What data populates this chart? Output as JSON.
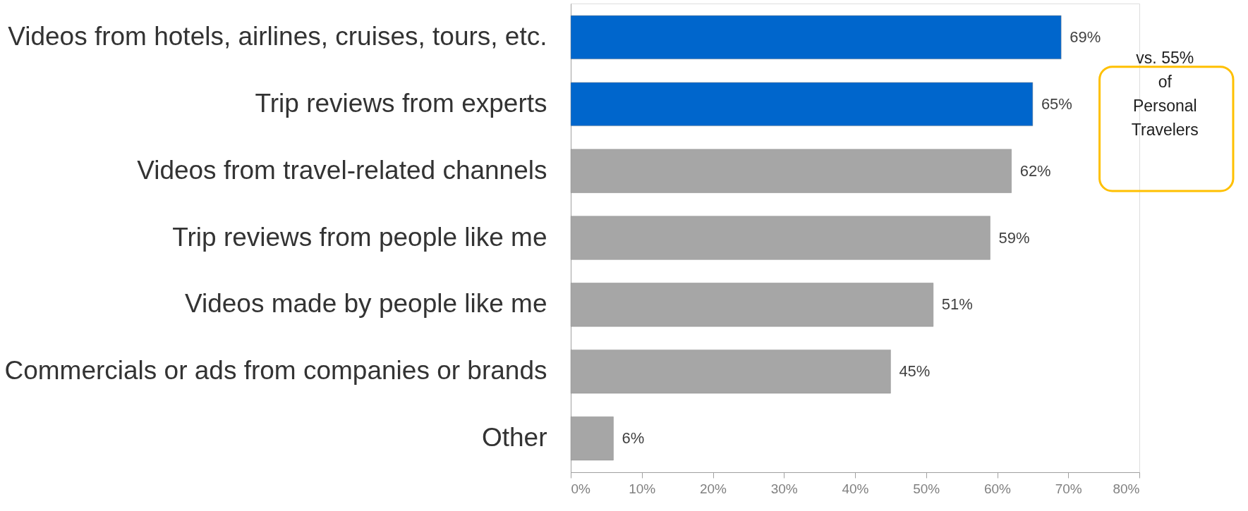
{
  "chart_data": {
    "type": "bar",
    "orientation": "horizontal",
    "categories": [
      "Videos from hotels, airlines, cruises, tours, etc.",
      "Trip reviews from experts",
      "Videos from travel-related channels",
      "Trip reviews from people like me",
      "Videos made by people like me",
      "Commercials or ads from companies or brands",
      "Other"
    ],
    "values": [
      69,
      65,
      62,
      59,
      51,
      45,
      6
    ],
    "colors": [
      "#0066cc",
      "#0066cc",
      "#a6a6a6",
      "#a6a6a6",
      "#a6a6a6",
      "#a6a6a6",
      "#a6a6a6"
    ],
    "value_labels": [
      "69%",
      "65%",
      "62%",
      "59%",
      "51%",
      "45%",
      "6%"
    ],
    "xlim": [
      0,
      80
    ],
    "xticks": [
      {
        "value": 0,
        "label": "0%"
      },
      {
        "value": 10,
        "label": "10%"
      },
      {
        "value": 20,
        "label": "20%"
      },
      {
        "value": 30,
        "label": "30%"
      },
      {
        "value": 40,
        "label": "40%"
      },
      {
        "value": 50,
        "label": "50%"
      },
      {
        "value": 60,
        "label": "60%"
      },
      {
        "value": 70,
        "label": "70%"
      },
      {
        "value": 80,
        "label": "80%"
      }
    ],
    "annotations": [
      "vs. 55% of Personal Travelers"
    ],
    "grid": false
  }
}
